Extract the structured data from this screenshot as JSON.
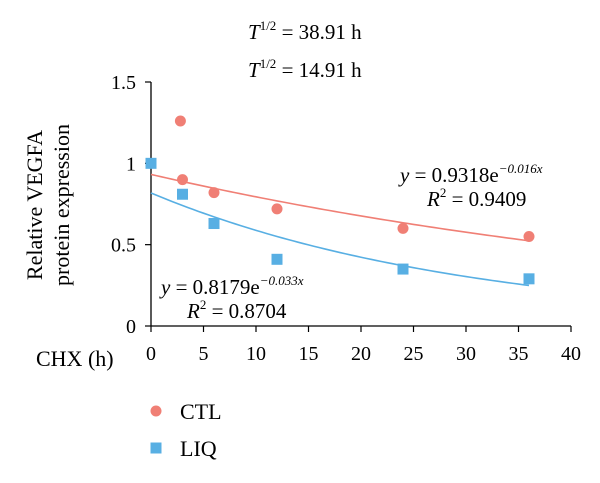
{
  "chart_data": {
    "type": "scatter",
    "annotations": {
      "half_life_ctl": {
        "symbol": "T",
        "sup": "1/2",
        "rest": " = 38.91 h"
      },
      "half_life_liq": {
        "symbol": "T",
        "sup": "1/2",
        "rest": " = 14.91 h"
      },
      "ctl_equation": {
        "y": "y",
        "mid": " = 0.9318e",
        "exp": "−0.016x"
      },
      "ctl_r2": {
        "r": "R",
        "sup": "2",
        "rest": " = 0.9409"
      },
      "liq_equation": {
        "y": "y",
        "mid": " = 0.8179e",
        "exp": "−0.033x"
      },
      "liq_r2": {
        "r": "R",
        "sup": "2",
        "rest": " = 0.8704"
      }
    },
    "ylabel_line1": "Relative VEGFA",
    "ylabel_line2": "protein expression",
    "xlabel": "CHX (h)",
    "xlim": [
      0,
      40
    ],
    "ylim": [
      0,
      1.5
    ],
    "x_ticks": [
      0,
      5,
      10,
      15,
      20,
      25,
      30,
      35,
      40
    ],
    "x_tick_labels": [
      "0",
      "5",
      "10",
      "15",
      "20",
      "25",
      "30",
      "35",
      "40"
    ],
    "y_ticks": [
      0,
      0.5,
      1,
      1.5
    ],
    "y_tick_labels": [
      "0",
      "0.5",
      "1",
      "1.5"
    ],
    "series": [
      {
        "name": "CTL",
        "color": "#f07f75",
        "marker": "circle",
        "x": [
          2.8,
          3,
          6,
          12,
          24,
          36
        ],
        "y": [
          1.26,
          0.9,
          0.82,
          0.72,
          0.6,
          0.55
        ],
        "fit": {
          "a": 0.9318,
          "b": -0.016,
          "x_range": [
            0,
            36
          ]
        }
      },
      {
        "name": "LIQ",
        "color": "#58afe3",
        "marker": "square",
        "x": [
          0,
          3,
          6,
          12,
          24,
          36
        ],
        "y": [
          1.0,
          0.81,
          0.63,
          0.41,
          0.35,
          0.29
        ],
        "fit": {
          "a": 0.8179,
          "b": -0.033,
          "x_range": [
            0,
            36
          ]
        }
      }
    ],
    "grid": false,
    "legend_position": "bottom-left"
  }
}
